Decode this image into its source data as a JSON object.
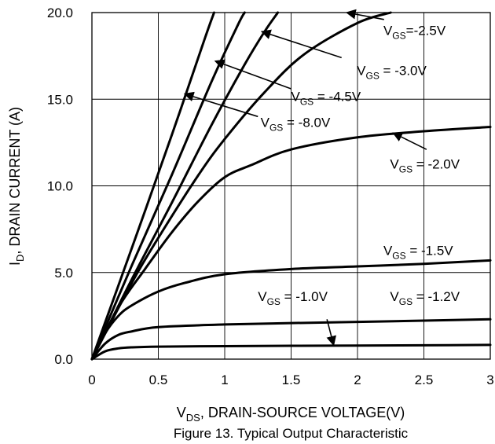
{
  "chart_data": {
    "type": "line",
    "title": "",
    "caption": "Figure 13. Typical Output Characteristic",
    "xlabel": {
      "main": "V",
      "sub": "DS",
      "rest": ", DRAIN-SOURCE VOLTAGE(V)"
    },
    "ylabel": {
      "main": "I",
      "sub": "D",
      "rest": ", DRAIN CURRENT (A)"
    },
    "xlim": [
      0,
      3
    ],
    "ylim": [
      0,
      20
    ],
    "x_ticks": [
      "0",
      "0.5",
      "1",
      "1.5",
      "2",
      "2.5",
      "3"
    ],
    "y_ticks": [
      "0.0",
      "5.0",
      "10.0",
      "15.0",
      "20.0"
    ],
    "grid": true,
    "series": [
      {
        "name": "VGS=-1.0V",
        "points": [
          [
            0,
            0
          ],
          [
            0.1,
            0.45
          ],
          [
            0.2,
            0.62
          ],
          [
            0.3,
            0.68
          ],
          [
            0.5,
            0.72
          ],
          [
            1,
            0.75
          ],
          [
            1.5,
            0.77
          ],
          [
            2,
            0.78
          ],
          [
            2.5,
            0.8
          ],
          [
            3,
            0.82
          ]
        ]
      },
      {
        "name": "VGS=-1.2V",
        "points": [
          [
            0,
            0
          ],
          [
            0.1,
            0.9
          ],
          [
            0.2,
            1.4
          ],
          [
            0.3,
            1.6
          ],
          [
            0.5,
            1.85
          ],
          [
            1,
            2.0
          ],
          [
            1.5,
            2.08
          ],
          [
            2,
            2.15
          ],
          [
            2.5,
            2.22
          ],
          [
            3,
            2.3
          ]
        ]
      },
      {
        "name": "VGS=-1.5V",
        "points": [
          [
            0,
            0
          ],
          [
            0.1,
            1.5
          ],
          [
            0.2,
            2.5
          ],
          [
            0.3,
            3.1
          ],
          [
            0.5,
            3.9
          ],
          [
            0.7,
            4.4
          ],
          [
            1,
            4.9
          ],
          [
            1.5,
            5.2
          ],
          [
            2,
            5.35
          ],
          [
            2.5,
            5.5
          ],
          [
            3,
            5.7
          ]
        ]
      },
      {
        "name": "VGS=-2.0V",
        "points": [
          [
            0,
            0
          ],
          [
            0.2,
            3.0
          ],
          [
            0.4,
            5.2
          ],
          [
            0.6,
            7.3
          ],
          [
            0.8,
            9.1
          ],
          [
            1,
            10.5
          ],
          [
            1.2,
            11.2
          ],
          [
            1.5,
            12.1
          ],
          [
            2,
            12.8
          ],
          [
            2.5,
            13.15
          ],
          [
            3,
            13.4
          ]
        ]
      },
      {
        "name": "VGS=-2.5V",
        "points": [
          [
            0,
            0
          ],
          [
            0.3,
            4.4
          ],
          [
            0.5,
            7.0
          ],
          [
            0.8,
            10.6
          ],
          [
            1,
            12.7
          ],
          [
            1.3,
            15.4
          ],
          [
            1.6,
            17.6
          ],
          [
            2,
            19.4
          ],
          [
            2.25,
            20.0
          ]
        ]
      },
      {
        "name": "VGS=-3.0V",
        "points": [
          [
            0,
            0
          ],
          [
            0.3,
            4.6
          ],
          [
            0.6,
            9.0
          ],
          [
            0.9,
            13.5
          ],
          [
            1.15,
            17.0
          ],
          [
            1.3,
            18.9
          ],
          [
            1.4,
            20.0
          ]
        ]
      },
      {
        "name": "VGS=-4.5V",
        "points": [
          [
            0,
            0
          ],
          [
            0.3,
            5.4
          ],
          [
            0.6,
            10.6
          ],
          [
            0.9,
            16.0
          ],
          [
            1.1,
            19.3
          ],
          [
            1.15,
            20.0
          ]
        ]
      },
      {
        "name": "VGS=-8.0V",
        "points": [
          [
            0,
            0
          ],
          [
            0.3,
            6.4
          ],
          [
            0.6,
            12.9
          ],
          [
            0.85,
            18.5
          ],
          [
            0.92,
            20.0
          ]
        ]
      }
    ],
    "annotations": [
      {
        "main": "V",
        "sub": "GS",
        "rest": "=-2.5V",
        "x": 2.195,
        "y": 18.7,
        "arrow_from": [
          2.2,
          19.6
        ],
        "arrow_to": [
          1.92,
          20.0
        ]
      },
      {
        "main": "V",
        "sub": "GS",
        "rest": " = -3.0V",
        "x": 1.995,
        "y": 16.4,
        "arrow_from": [
          1.88,
          17.4
        ],
        "arrow_to": [
          1.28,
          18.9
        ]
      },
      {
        "main": "V",
        "sub": "GS",
        "rest": " = -4.5V",
        "x": 1.5,
        "y": 14.9,
        "arrow_from": [
          1.5,
          15.6
        ],
        "arrow_to": [
          0.93,
          17.2
        ]
      },
      {
        "main": "V",
        "sub": "GS",
        "rest": " = -8.0V",
        "x": 1.27,
        "y": 13.4,
        "arrow_from": [
          1.25,
          14.0
        ],
        "arrow_to": [
          0.7,
          15.3
        ]
      },
      {
        "main": "V",
        "sub": "GS",
        "rest": " = -2.0V",
        "x": 2.245,
        "y": 11.0,
        "arrow_from": [
          2.52,
          12.1
        ],
        "arrow_to": [
          2.27,
          13.05
        ]
      },
      {
        "main": "V",
        "sub": "GS",
        "rest": " = -1.5V",
        "x": 2.195,
        "y": 6.0,
        "arrow_from": null,
        "arrow_to": null
      },
      {
        "main": "V",
        "sub": "GS",
        "rest": " = -1.0V",
        "x": 1.25,
        "y": 3.35,
        "arrow_from": [
          1.77,
          2.3
        ],
        "arrow_to": [
          1.82,
          0.82
        ]
      },
      {
        "main": "V",
        "sub": "GS",
        "rest": " = -1.2V",
        "x": 2.245,
        "y": 3.35,
        "arrow_from": null,
        "arrow_to": null
      }
    ]
  }
}
